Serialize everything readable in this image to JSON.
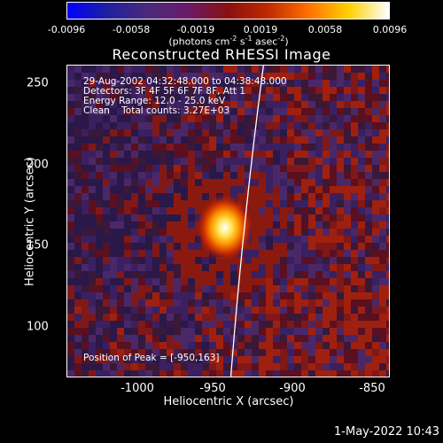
{
  "colorbar": {
    "ticks": [
      "-0.0096",
      "-0.0058",
      "-0.0019",
      "0.0019",
      "0.0058",
      "0.0096"
    ],
    "unit_prefix": "(photons cm",
    "unit_exp1": "-2",
    "unit_mid1": " s",
    "unit_exp2": "-1",
    "unit_mid2": " asec",
    "unit_exp3": "-2",
    "unit_suffix": ")",
    "colors": [
      "#0000ff",
      "#2020a0",
      "#4a2a7a",
      "#6a1a6a",
      "#8a1010",
      "#c02a00",
      "#ff7000",
      "#ffd000",
      "#ffffff"
    ]
  },
  "plot": {
    "title": "Reconstructed RHESSI Image",
    "xlabel": "Heliocentric X (arcsec)",
    "ylabel": "Heliocentric Y (arcsec)",
    "x_ticks": [
      "-1000",
      "-950",
      "-900",
      "-850"
    ],
    "y_ticks": [
      "100",
      "150",
      "200",
      "250"
    ],
    "info_lines": [
      "29-Aug-2002 04:32:48.000 to 04:38:48.000",
      "Detectors: 3F 4F 5F 6F 7F 8F, Att 1",
      "Energy Range: 12.0 - 25.0 keV",
      "Clean    Total counts: 3.27E+03"
    ],
    "peak_label": "Position of Peak = [-950,163]",
    "xlim": [
      -1045,
      -850
    ],
    "ylim": [
      72,
      261
    ],
    "peak": [
      -950,
      163
    ],
    "limb_color": "#ffffff"
  },
  "timestamp": "1-May-2022 10:43"
}
